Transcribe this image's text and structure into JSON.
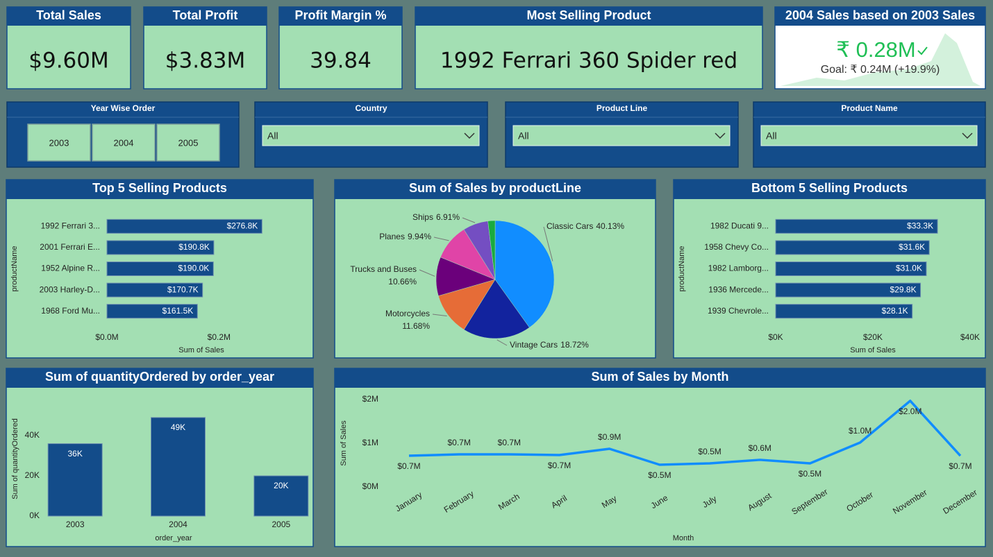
{
  "cards": [
    {
      "title": "Total Sales",
      "value": "$9.60M"
    },
    {
      "title": "Total Profit",
      "value": "$3.83M"
    },
    {
      "title": "Profit Margin %",
      "value": "39.84"
    },
    {
      "title": "Most Selling Product",
      "value": "1992 Ferrari 360 Spider red"
    },
    {
      "title": "2004 Sales based on 2003 Sales",
      "value": "₹ 0.28M",
      "goal": "Goal: ₹ 0.24M (+19.9%)"
    }
  ],
  "slicers": [
    {
      "title": "Year Wise Order",
      "options": [
        "2003",
        "2004",
        "2005"
      ]
    },
    {
      "title": "Country",
      "selected": "All"
    },
    {
      "title": "Product Line",
      "selected": "All"
    },
    {
      "title": "Product Name",
      "selected": "All"
    }
  ],
  "chart_data": [
    {
      "type": "bar",
      "orientation": "horizontal",
      "title": "Top 5 Selling Products",
      "categories": [
        "1992 Ferrari 3...",
        "2001 Ferrari E...",
        "1952 Alpine R...",
        "2003 Harley-D...",
        "1968 Ford Mu..."
      ],
      "values": [
        276800,
        190800,
        190000,
        170700,
        161500
      ],
      "value_labels": [
        "$276.8K",
        "$190.8K",
        "$190.0K",
        "$170.7K",
        "$161.5K"
      ],
      "color": "#134c8a",
      "xlim": [
        0,
        300000
      ],
      "xticks": [
        {
          "value": 0,
          "label": "$0.0M"
        },
        {
          "value": 200000,
          "label": "$0.2M"
        }
      ],
      "x_label": "Sum of Sales",
      "y_label": "productName"
    },
    {
      "type": "pie",
      "title": "Sum of Sales by productLine",
      "categories": [
        "Classic Cars",
        "Vintage Cars",
        "Motorcycles",
        "Trucks and Buses",
        "Planes",
        "Ships",
        null
      ],
      "values": [
        40.13,
        18.72,
        11.68,
        10.66,
        9.94,
        6.91,
        1.96
      ],
      "value_labels": [
        "40.13%",
        "18.72%",
        "11.68%",
        "10.66%",
        "9.94%",
        "6.91%",
        null
      ],
      "colors": [
        "#118dff",
        "#12239e",
        "#e66c37",
        "#6b007b",
        "#e044a7",
        "#744ec2",
        "#1aab40"
      ]
    },
    {
      "type": "bar",
      "orientation": "horizontal",
      "title": "Bottom 5 Selling Products",
      "categories": [
        "1982 Ducati 9...",
        "1958 Chevy Co...",
        "1982 Lamborg...",
        "1936 Mercede...",
        "1939 Chevrole..."
      ],
      "values": [
        33300,
        31600,
        31000,
        29800,
        28100
      ],
      "value_labels": [
        "$33.3K",
        "$31.6K",
        "$31.0K",
        "$29.8K",
        "$28.1K"
      ],
      "color": "#134c8a",
      "xlim": [
        0,
        40000
      ],
      "xticks": [
        {
          "value": 0,
          "label": "$0K"
        },
        {
          "value": 20000,
          "label": "$20K"
        },
        {
          "value": 40000,
          "label": "$40K"
        }
      ],
      "x_label": "Sum of Sales",
      "y_label": "productName"
    },
    {
      "type": "bar",
      "orientation": "vertical",
      "title": "Sum of quantityOrdered by order_year",
      "categories": [
        "2003",
        "2004",
        "2005"
      ],
      "values": [
        36000,
        49000,
        20000
      ],
      "value_labels": [
        "36K",
        "49K",
        "20K"
      ],
      "color": "#134c8a",
      "ylim": [
        0,
        50000
      ],
      "yticks": [
        {
          "value": 0,
          "label": "0K"
        },
        {
          "value": 20000,
          "label": "20K"
        },
        {
          "value": 40000,
          "label": "40K"
        }
      ],
      "x_label": "order_year",
      "y_label": "Sum of quantityOrdered"
    },
    {
      "type": "line",
      "title": "Sum of Sales by Month",
      "categories": [
        "January",
        "February",
        "March",
        "April",
        "May",
        "June",
        "July",
        "August",
        "September",
        "October",
        "November",
        "December"
      ],
      "values": [
        714000,
        746000,
        746000,
        730000,
        873000,
        508000,
        540000,
        620000,
        540000,
        1016000,
        1970000,
        714000
      ],
      "value_labels": [
        "$0.7M",
        "$0.7M",
        "$0.7M",
        "$0.7M",
        "$0.9M",
        "$0.5M",
        "$0.5M",
        "$0.6M",
        "$0.5M",
        "$1.0M",
        "$2.0M",
        "$0.7M"
      ],
      "color": "#118dff",
      "ylim": [
        0,
        2000000
      ],
      "yticks": [
        {
          "value": 0,
          "label": "$0M"
        },
        {
          "value": 1000000,
          "label": "$1M"
        },
        {
          "value": 2000000,
          "label": "$2M"
        }
      ],
      "x_label": "Month",
      "y_label": "Sum of Sales"
    }
  ]
}
